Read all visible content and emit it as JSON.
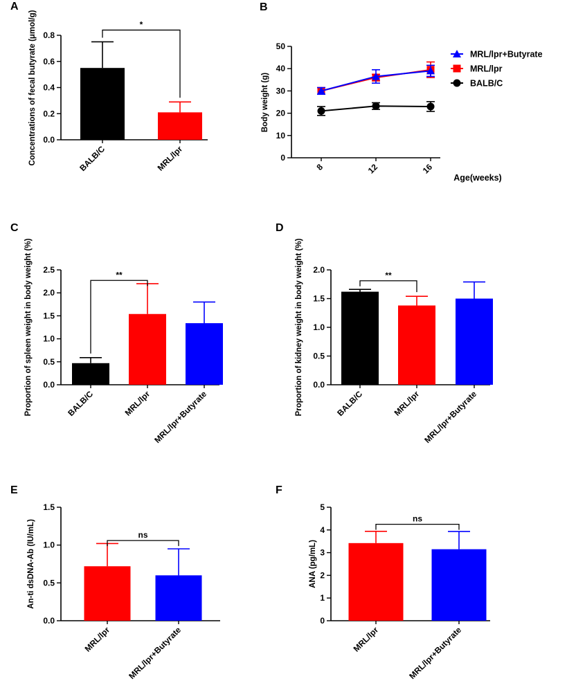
{
  "colors": {
    "black": "#000000",
    "red": "#ff0000",
    "blue": "#0000ff"
  },
  "chart_data": [
    {
      "panel": "A",
      "type": "bar",
      "ylabel": "Concentrations of fecal butyrate (μmol/g)",
      "ylim": [
        0,
        0.8
      ],
      "yticks": [
        "0.0",
        "0.2",
        "0.4",
        "0.6",
        "0.8"
      ],
      "categories": [
        "BALB/C",
        "MRL/lpr"
      ],
      "values": [
        0.55,
        0.21
      ],
      "errors": [
        0.2,
        0.08
      ],
      "colors": [
        "#000000",
        "#ff0000"
      ],
      "significance": {
        "label": "*",
        "from": 0,
        "to": 1,
        "y": 0.84
      }
    },
    {
      "panel": "B",
      "type": "line",
      "xlabel": "Age(weeks)",
      "ylabel": "Body weight (g)",
      "ylim": [
        0,
        50
      ],
      "yticks": [
        "0",
        "10",
        "20",
        "30",
        "40",
        "50"
      ],
      "x": [
        8,
        12,
        16
      ],
      "xticks": [
        "8",
        "12",
        "16"
      ],
      "series": [
        {
          "name": "MRL/lpr+Butyrate",
          "values": [
            30,
            36.5,
            39
          ],
          "errors": [
            1.5,
            3,
            2.5
          ],
          "color": "#0000ff",
          "marker": "triangle"
        },
        {
          "name": "MRL/lpr",
          "values": [
            30,
            36,
            39.5
          ],
          "errors": [
            1.5,
            1.5,
            3.5
          ],
          "color": "#ff0000",
          "marker": "square"
        },
        {
          "name": "BALB/C",
          "values": [
            21,
            23.2,
            23
          ],
          "errors": [
            2,
            1.5,
            2.2
          ],
          "color": "#000000",
          "marker": "circle"
        }
      ]
    },
    {
      "panel": "C",
      "type": "bar",
      "ylabel": "Proportion of spleen weight in body weight (%)",
      "ylim": [
        0,
        2.5
      ],
      "yticks": [
        "0.0",
        "0.5",
        "1.0",
        "1.5",
        "2.0",
        "2.5"
      ],
      "categories": [
        "BALB/C",
        "MRL/lpr",
        "MRL/lpr+Butyrate"
      ],
      "values": [
        0.47,
        1.54,
        1.34
      ],
      "errors": [
        0.12,
        0.66,
        0.46
      ],
      "colors": [
        "#000000",
        "#ff0000",
        "#0000ff"
      ],
      "significance": {
        "label": "**",
        "from": 0,
        "to": 1,
        "y": 2.27
      }
    },
    {
      "panel": "D",
      "type": "bar",
      "ylabel": "Proportion of kidney weight  in body weight (%)",
      "ylim": [
        0,
        2.0
      ],
      "yticks": [
        "0.0",
        "0.5",
        "1.0",
        "1.5",
        "2.0"
      ],
      "categories": [
        "BALB/C",
        "MRL/lpr",
        "MRL/lpr+Butyrate"
      ],
      "values": [
        1.62,
        1.38,
        1.5
      ],
      "errors": [
        0.04,
        0.16,
        0.29
      ],
      "colors": [
        "#000000",
        "#ff0000",
        "#0000ff"
      ],
      "significance": {
        "label": "**",
        "from": 0,
        "to": 1,
        "y": 1.81
      }
    },
    {
      "panel": "E",
      "type": "bar",
      "ylabel": "An-ti dsDNA-Ab (IU/mL)",
      "ylim": [
        0,
        1.5
      ],
      "yticks": [
        "0.0",
        "0.5",
        "1.0",
        "1.5"
      ],
      "categories": [
        "MRL/lpr",
        "MRL/lpr+Butyrate"
      ],
      "values": [
        0.72,
        0.6
      ],
      "errors": [
        0.3,
        0.35
      ],
      "colors": [
        "#ff0000",
        "#0000ff"
      ],
      "significance": {
        "label": "ns",
        "from": 0,
        "to": 1,
        "y": 1.06
      }
    },
    {
      "panel": "F",
      "type": "bar",
      "ylabel": "ANA (pg/mL)",
      "ylim": [
        0,
        5
      ],
      "yticks": [
        "0",
        "1",
        "2",
        "3",
        "4",
        "5"
      ],
      "categories": [
        "MRL/lpr",
        "MRL/lpr+Butyrate"
      ],
      "values": [
        3.42,
        3.15
      ],
      "errors": [
        0.52,
        0.78
      ],
      "colors": [
        "#ff0000",
        "#0000ff"
      ],
      "significance": {
        "label": "ns",
        "from": 0,
        "to": 1,
        "y": 4.25
      }
    }
  ]
}
